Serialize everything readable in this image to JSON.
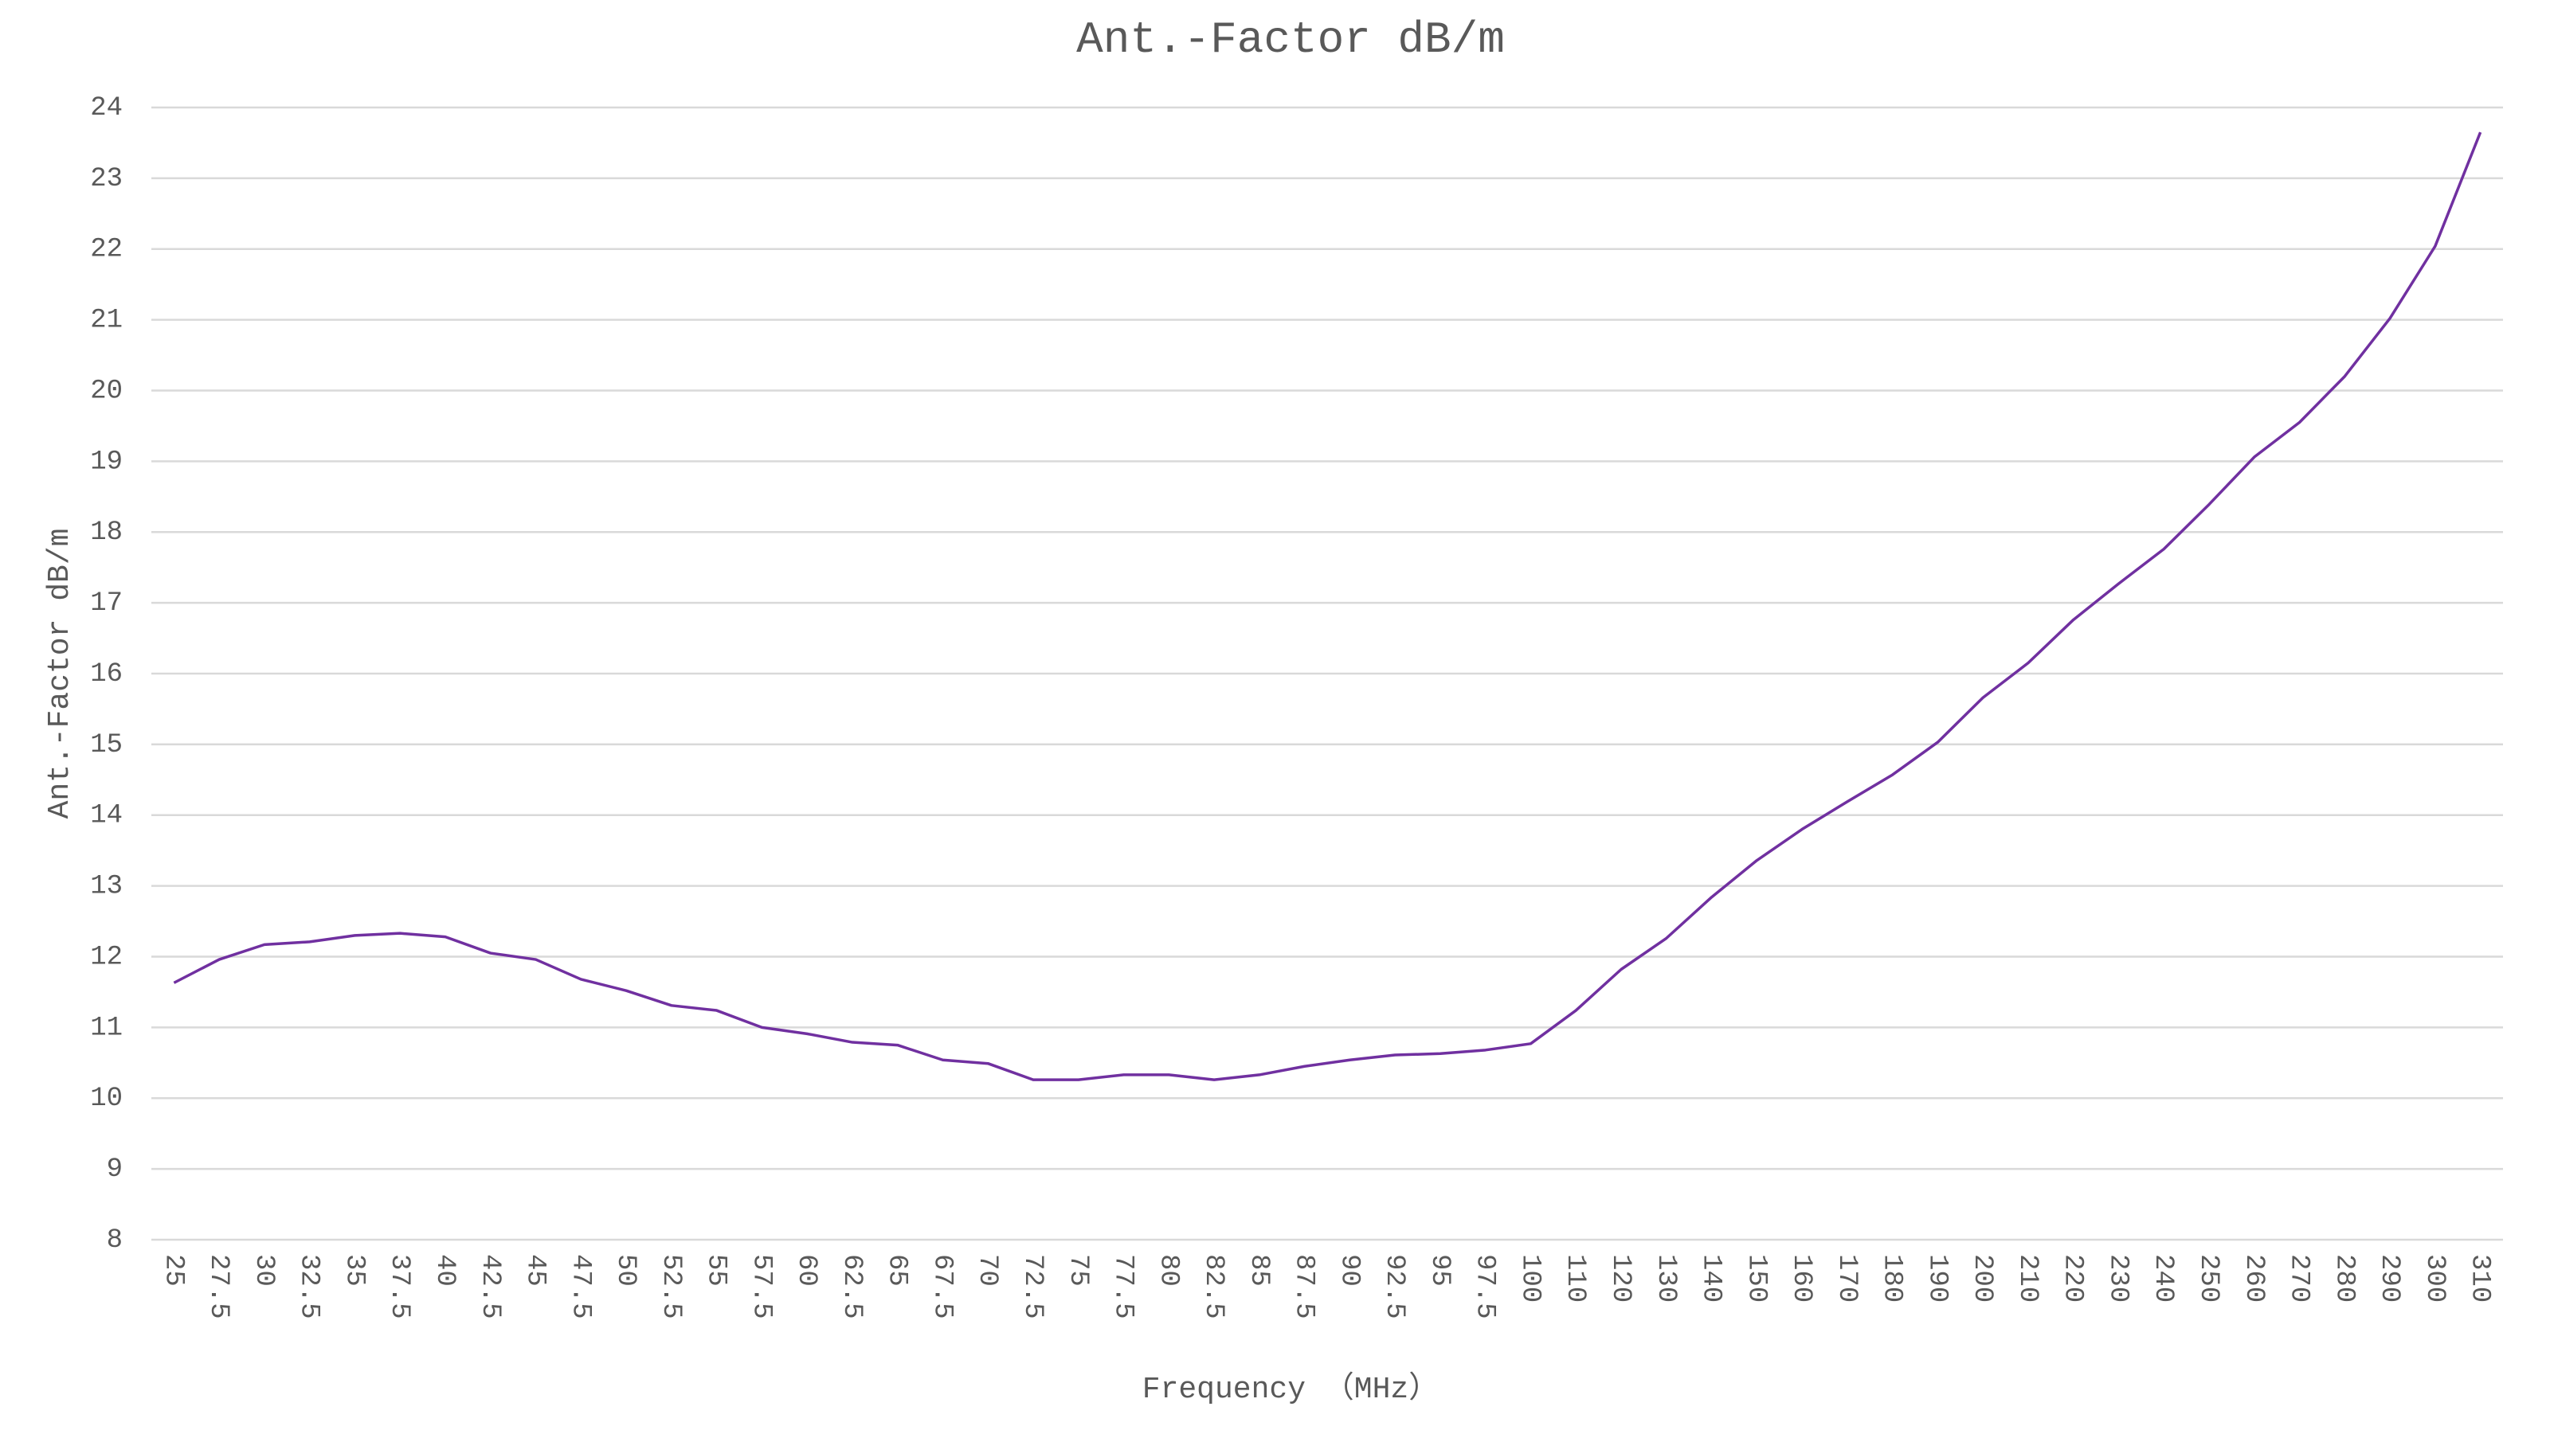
{
  "chart_data": {
    "type": "line",
    "title": "Ant.-Factor dB/m",
    "x_label": "Frequency （MHz）",
    "y_label": "Ant.-Factor dB/m",
    "categories": [
      "25",
      "27.5",
      "30",
      "32.5",
      "35",
      "37.5",
      "40",
      "42.5",
      "45",
      "47.5",
      "50",
      "52.5",
      "55",
      "57.5",
      "60",
      "62.5",
      "65",
      "67.5",
      "70",
      "72.5",
      "75",
      "77.5",
      "80",
      "82.5",
      "85",
      "87.5",
      "90",
      "92.5",
      "95",
      "97.5",
      "100",
      "110",
      "120",
      "130",
      "140",
      "150",
      "160",
      "170",
      "180",
      "190",
      "200",
      "210",
      "220",
      "230",
      "240",
      "250",
      "260",
      "270",
      "280",
      "290",
      "300",
      "310"
    ],
    "series": [
      {
        "name": "Ant.-Factor dB/m",
        "color": "#7030a0",
        "values": [
          11.63,
          11.96,
          12.17,
          12.21,
          12.3,
          12.33,
          12.28,
          12.05,
          11.96,
          11.68,
          11.52,
          11.31,
          11.24,
          11.0,
          10.91,
          10.79,
          10.75,
          10.54,
          10.49,
          10.26,
          10.26,
          10.33,
          10.33,
          10.26,
          10.33,
          10.45,
          10.54,
          10.61,
          10.63,
          10.68,
          10.77,
          11.24,
          11.82,
          12.26,
          12.84,
          13.36,
          13.8,
          14.19,
          14.57,
          15.03,
          15.66,
          16.15,
          16.76,
          17.27,
          17.76,
          18.39,
          19.06,
          19.55,
          20.2,
          21.02,
          22.04,
          23.65
        ]
      }
    ],
    "ylim": [
      8,
      24
    ],
    "yticks": [
      8,
      9,
      10,
      11,
      12,
      13,
      14,
      15,
      16,
      17,
      18,
      19,
      20,
      21,
      22,
      23,
      24
    ],
    "grid": true
  }
}
